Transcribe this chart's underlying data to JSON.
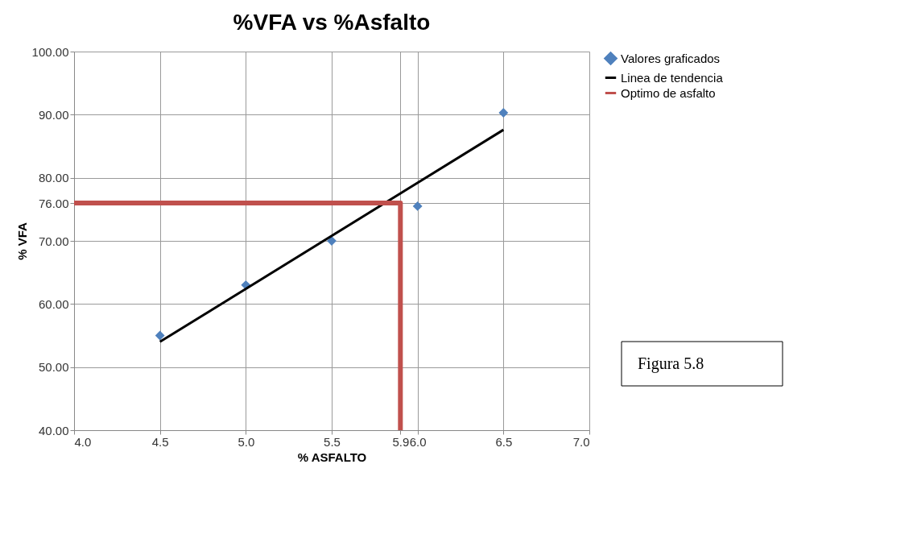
{
  "chart_data": {
    "type": "scatter",
    "title": "%VFA vs %Asfalto",
    "xlabel": "% ASFALTO",
    "ylabel": "% VFA",
    "xlim": [
      4.0,
      7.0
    ],
    "xticks": [
      {
        "value": 4.0,
        "label": "4.0"
      },
      {
        "value": 4.5,
        "label": "4.5"
      },
      {
        "value": 5.0,
        "label": "5.0"
      },
      {
        "value": 5.5,
        "label": "5.5"
      },
      {
        "value": 5.9,
        "label": "5.9"
      },
      {
        "value": 6.0,
        "label": "6.0"
      },
      {
        "value": 6.5,
        "label": "6.5"
      },
      {
        "value": 7.0,
        "label": "7.0"
      }
    ],
    "ylim": [
      40,
      100
    ],
    "yticks": [
      {
        "value": 40,
        "label": "40.00"
      },
      {
        "value": 50,
        "label": "50.00"
      },
      {
        "value": 60,
        "label": "60.00"
      },
      {
        "value": 70,
        "label": "70.00"
      },
      {
        "value": 76,
        "label": "76.00"
      },
      {
        "value": 80,
        "label": "80.00"
      },
      {
        "value": 90,
        "label": "90.00"
      },
      {
        "value": 100,
        "label": "100.00"
      }
    ],
    "grid": true,
    "legend": "right",
    "series": [
      {
        "name": "Valores graficados",
        "marker": "diamond",
        "color": "#4f81bd",
        "x": [
          4.5,
          5.0,
          5.5,
          6.0,
          6.5
        ],
        "values": [
          55,
          63,
          70,
          75.5,
          90.3
        ]
      },
      {
        "name": "Linea de tendencia",
        "type": "line",
        "marker": "none",
        "color": "#000000",
        "x": [
          4.5,
          6.5
        ],
        "values": [
          54,
          87.6
        ]
      },
      {
        "name": "Optimo de asfalto",
        "type": "line",
        "marker": "none",
        "color": "#c0504d",
        "x": [
          4.0,
          5.9,
          5.9
        ],
        "values": [
          76,
          76,
          40
        ]
      }
    ],
    "annotations": [
      "Figura 5.8"
    ]
  }
}
